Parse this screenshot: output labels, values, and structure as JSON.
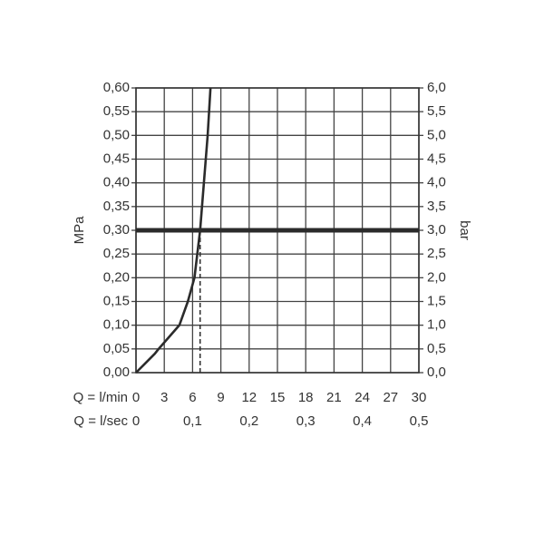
{
  "chart_data": {
    "type": "line",
    "ylabel": "MPa",
    "y2label": "bar",
    "xlabel": "Q = l/min",
    "x2label": "Q = l/sec",
    "x": [
      0,
      1,
      2,
      2.4,
      3.5,
      4.6,
      5.5,
      6.2,
      6.8,
      7.2,
      7.6,
      7.9
    ],
    "values": [
      0,
      0.02,
      0.04,
      0.05,
      0.075,
      0.1,
      0.15,
      0.2,
      0.3,
      0.4,
      0.5,
      0.6
    ],
    "color": "#2b2b2b",
    "ref_y": 0.3,
    "ref_x": 6.8,
    "xlim": [
      0,
      30
    ],
    "xticks": [
      0,
      3,
      6,
      9,
      12,
      15,
      18,
      21,
      24,
      27,
      30
    ],
    "x2lim": [
      0,
      0.5
    ],
    "x2ticks": [
      0,
      {
        "value": 0.1,
        "label": "0,1"
      },
      {
        "value": 0.2,
        "label": "0,2"
      },
      {
        "value": 0.3,
        "label": "0,3"
      },
      {
        "value": 0.4,
        "label": "0,4"
      },
      {
        "value": 0.5,
        "label": "0,5"
      }
    ],
    "ylim": [
      0,
      0.6
    ],
    "yticks": [
      {
        "value": 0,
        "label": "0,00"
      },
      {
        "value": 0.05,
        "label": "0,05"
      },
      {
        "value": 0.1,
        "label": "0,10"
      },
      {
        "value": 0.15,
        "label": "0,15"
      },
      {
        "value": 0.2,
        "label": "0,20"
      },
      {
        "value": 0.25,
        "label": "0,25"
      },
      {
        "value": 0.3,
        "label": "0,30"
      },
      {
        "value": 0.35,
        "label": "0,35"
      },
      {
        "value": 0.4,
        "label": "0,40"
      },
      {
        "value": 0.45,
        "label": "0,45"
      },
      {
        "value": 0.5,
        "label": "0,50"
      },
      {
        "value": 0.55,
        "label": "0,55"
      },
      {
        "value": 0.6,
        "label": "0,60"
      }
    ],
    "y2lim": [
      0,
      6
    ],
    "y2ticks": [
      {
        "value": 0,
        "label": "0,0"
      },
      {
        "value": 0.5,
        "label": "0,5"
      },
      {
        "value": 1,
        "label": "1,0"
      },
      {
        "value": 1.5,
        "label": "1,5"
      },
      {
        "value": 2,
        "label": "2,0"
      },
      {
        "value": 2.5,
        "label": "2,5"
      },
      {
        "value": 3,
        "label": "3,0"
      },
      {
        "value": 3.5,
        "label": "3,5"
      },
      {
        "value": 4,
        "label": "4,0"
      },
      {
        "value": 4.5,
        "label": "4,5"
      },
      {
        "value": 5,
        "label": "5,0"
      },
      {
        "value": 5.5,
        "label": "5,5"
      },
      {
        "value": 6,
        "label": "6,0"
      }
    ],
    "grid": true
  }
}
